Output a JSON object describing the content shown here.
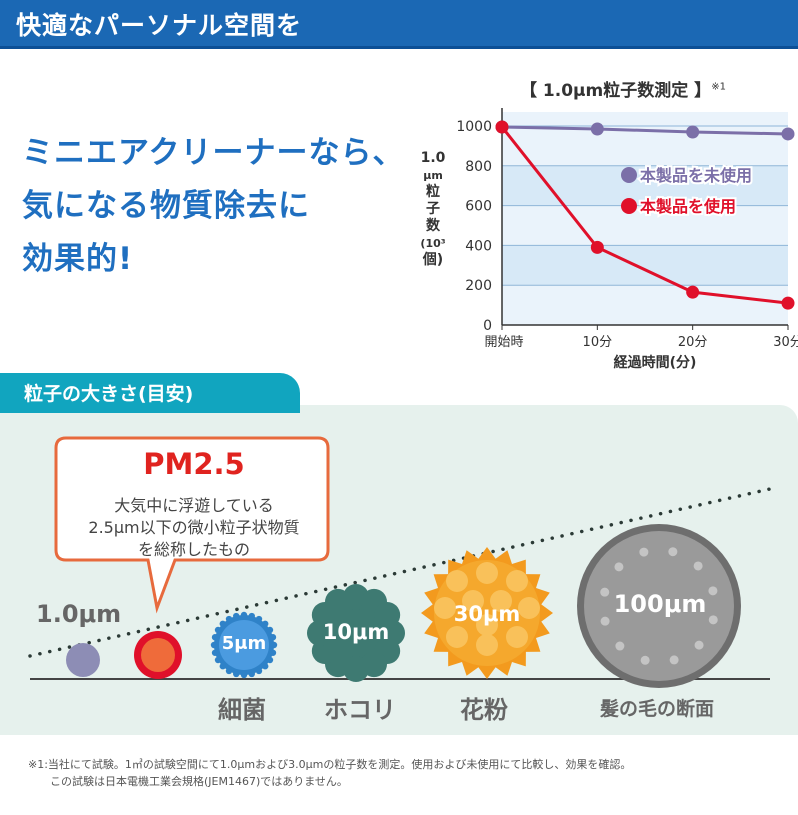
{
  "header": {
    "title": "快適なパーソナル空間を"
  },
  "headline": {
    "lines": [
      "ミニエアクリーナーなら、",
      "気になる物質除去に",
      "効果的!"
    ]
  },
  "chart_data": {
    "type": "line",
    "title": "【 1.0μm粒子数測定 】",
    "title_note": "※1",
    "ylabel_lines": [
      "1.0",
      "μm",
      "粒",
      "子",
      "数",
      "(10³",
      "個)"
    ],
    "xlabel": "経過時間(分)",
    "categories": [
      "開始時",
      "10分",
      "20分",
      "30分"
    ],
    "y_ticks": [
      "0",
      "200",
      "400",
      "600",
      "800",
      "1000"
    ],
    "ylim": [
      0,
      1000
    ],
    "grid": true,
    "legend_position": "right",
    "series": [
      {
        "name": "本製品を未使用",
        "color": "#7b6fa8",
        "values": [
          995,
          985,
          970,
          960
        ]
      },
      {
        "name": "本製品を使用",
        "color": "#e0102a",
        "values": [
          995,
          390,
          165,
          110
        ]
      }
    ]
  },
  "particle_section": {
    "tab_label": "粒子の大きさ(目安)",
    "callout": {
      "title": "PM2.5",
      "lines": [
        "大気中に浮遊している",
        "2.5μm以下の微小粒子状物質",
        "を総称したもの"
      ]
    },
    "label_1um": "1.0μm",
    "particles": [
      {
        "size": "5μm",
        "name": "細菌"
      },
      {
        "size": "10μm",
        "name": "ホコリ"
      },
      {
        "size": "30μm",
        "name": "花粉"
      },
      {
        "size": "100μm",
        "name": "髪の毛の断面"
      }
    ]
  },
  "footnote": {
    "lines": [
      "※1:当社にて試験。1㎥の試験空間にて1.0μmおよび3.0μmの粒子数を測定。使用および未使用にて比較し、効果を確認。",
      "この試験は日本電機工業会規格(JEM1467)ではありません。"
    ]
  },
  "colors": {
    "header": "#1b68b4",
    "headline": "#1f6fc0",
    "section_tab": "#11a5bf",
    "pm25": "#e0231f",
    "bacteria": "#3d8fd4",
    "dust": "#3e7a72",
    "pollen": "#f2a02a",
    "hair": "#8a8a8a"
  }
}
